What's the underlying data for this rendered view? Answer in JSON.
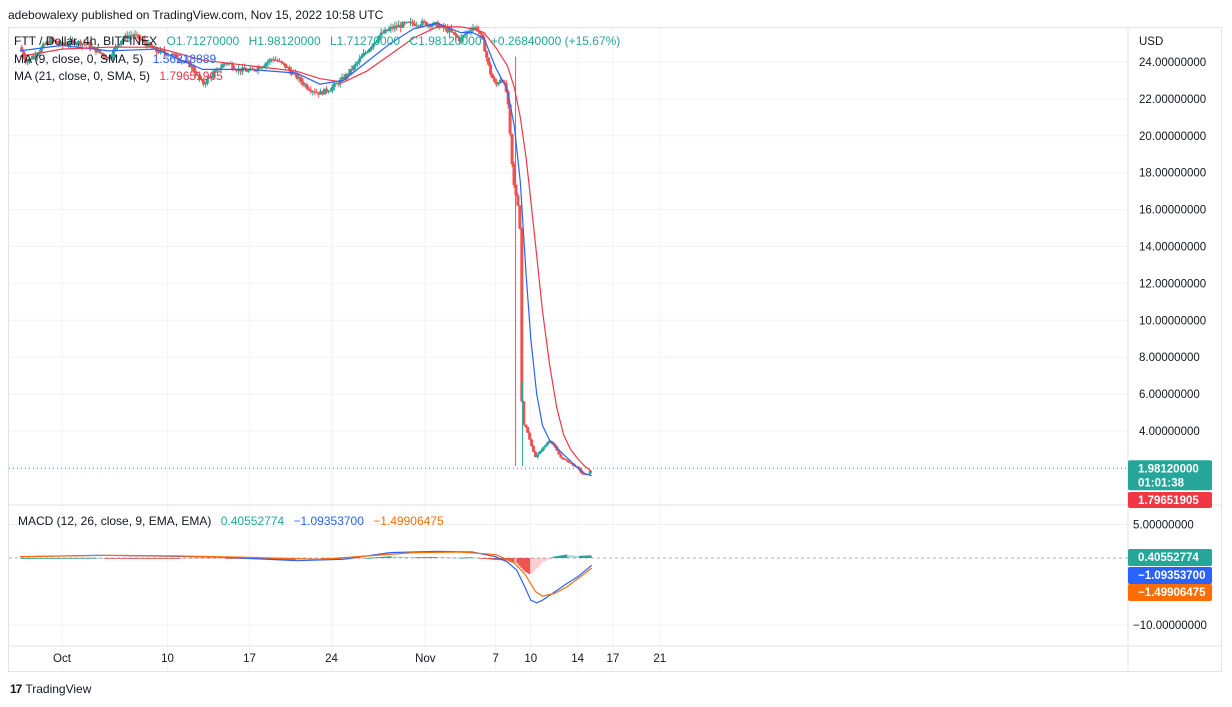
{
  "header": {
    "published": "adebowalexy published on TradingView.com, Nov 15, 2022 10:58 UTC"
  },
  "legend": {
    "symbol": "FTT / Dollar, 4h, BITFINEX",
    "o": "O1.71270000",
    "h": "H1.98120000",
    "l": "L1.71270000",
    "c": "C1.98120000",
    "chg": "+0.26840000 (+15.67%)",
    "ma1_label": "MA (9, close, 0, SMA, 5)",
    "ma1_value": "1.56218889",
    "ma2_label": "MA (21, close, 0, SMA, 5)",
    "ma2_value": "1.79651905",
    "macd_label": "MACD (12, 26, close, 9, EMA, EMA)",
    "macd_v1": "0.40552774",
    "macd_v2": "−1.09353700",
    "macd_v3": "−1.49906475"
  },
  "footer": {
    "brand": "TradingView"
  },
  "colors": {
    "up": "#26a69a",
    "down": "#ef5350",
    "ma_fast": "#2962ff",
    "ma_slow": "#f23645",
    "macd_line": "#2962ff",
    "signal_line": "#ff6d00",
    "hist_pos": "#26a69a",
    "hist_neg": "#ef5350",
    "hist_pos_light": "#b2dfdb",
    "hist_neg_light": "#ffcdd2"
  },
  "chart_data": [
    {
      "type": "candlestick",
      "title": "FTT / Dollar, 4h, BITFINEX",
      "currency": "USD",
      "ylim": [
        0.6,
        27.2
      ],
      "y_ticks": [
        "24.00000000",
        "22.00000000",
        "20.00000000",
        "18.00000000",
        "16.00000000",
        "14.00000000",
        "12.00000000",
        "10.00000000",
        "8.00000000",
        "6.00000000",
        "4.00000000"
      ],
      "y_tick_values": [
        24,
        22,
        20,
        18,
        16,
        14,
        12,
        10,
        8,
        6,
        4
      ],
      "x_ticks": [
        "Oct",
        "10",
        "17",
        "24",
        "Nov",
        "7",
        "10",
        "14",
        "17",
        "21"
      ],
      "x_tick_days": [
        0,
        9,
        16,
        23,
        31,
        37,
        40,
        44,
        47,
        51
      ],
      "last_price": "1.98120000",
      "countdown": "01:01:38",
      "ma_slow_last": "1.79651905",
      "anchors": [
        [
          -3.6,
          24.8
        ],
        [
          -3,
          24.0
        ],
        [
          -2,
          24.6
        ],
        [
          -1,
          25.2
        ],
        [
          0,
          24.9
        ],
        [
          1,
          25.1
        ],
        [
          2,
          25.0
        ],
        [
          3,
          24.6
        ],
        [
          4,
          24.2
        ],
        [
          5,
          25.2
        ],
        [
          6,
          25.5
        ],
        [
          7,
          25.1
        ],
        [
          8,
          24.6
        ],
        [
          9,
          24.5
        ],
        [
          10,
          24.2
        ],
        [
          11,
          23.8
        ],
        [
          12,
          22.8
        ],
        [
          13,
          23.4
        ],
        [
          14,
          24.0
        ],
        [
          15,
          23.6
        ],
        [
          16,
          23.5
        ],
        [
          17,
          23.8
        ],
        [
          18,
          24.2
        ],
        [
          19,
          23.8
        ],
        [
          20,
          23.2
        ],
        [
          21,
          22.6
        ],
        [
          22,
          22.3
        ],
        [
          23,
          22.6
        ],
        [
          24,
          23.1
        ],
        [
          25,
          23.8
        ],
        [
          26,
          24.6
        ],
        [
          27,
          25.4
        ],
        [
          28,
          25.8
        ],
        [
          29,
          26.0
        ],
        [
          30,
          26.1
        ],
        [
          31,
          26.1
        ],
        [
          32,
          26.0
        ],
        [
          33,
          25.7
        ],
        [
          34,
          25.2
        ],
        [
          34.5,
          25.6
        ],
        [
          35,
          25.9
        ],
        [
          35.5,
          25.8
        ],
        [
          36,
          24.9
        ],
        [
          36.5,
          23.5
        ],
        [
          37,
          22.7
        ],
        [
          37.5,
          23.2
        ],
        [
          38,
          22.2
        ],
        [
          38.5,
          17.5
        ],
        [
          39,
          16.0
        ],
        [
          39.1,
          14.5
        ],
        [
          39.25,
          4.5
        ],
        [
          39.6,
          4.2
        ],
        [
          40,
          3.3
        ],
        [
          40.4,
          2.6
        ],
        [
          40.8,
          2.9
        ],
        [
          41.2,
          3.2
        ],
        [
          41.6,
          3.5
        ],
        [
          42,
          3.2
        ],
        [
          42.5,
          2.6
        ],
        [
          43,
          2.4
        ],
        [
          43.5,
          2.2
        ],
        [
          44,
          2.0
        ],
        [
          44.5,
          1.6
        ],
        [
          45,
          1.72
        ],
        [
          45.2,
          1.98
        ]
      ],
      "ma_fast": [
        [
          -3.6,
          24.6
        ],
        [
          0,
          24.9
        ],
        [
          4,
          24.6
        ],
        [
          8,
          24.7
        ],
        [
          12,
          23.6
        ],
        [
          16,
          23.6
        ],
        [
          20,
          23.4
        ],
        [
          22,
          22.8
        ],
        [
          24,
          23.0
        ],
        [
          26,
          24.0
        ],
        [
          28,
          25.0
        ],
        [
          30,
          25.8
        ],
        [
          32,
          26.1
        ],
        [
          34,
          25.6
        ],
        [
          35,
          25.6
        ],
        [
          36,
          25.3
        ],
        [
          37,
          23.7
        ],
        [
          38,
          22.5
        ],
        [
          38.6,
          20.5
        ],
        [
          39.1,
          17.5
        ],
        [
          39.6,
          12.5
        ],
        [
          40,
          9.0
        ],
        [
          40.5,
          6.0
        ],
        [
          41,
          4.3
        ],
        [
          41.6,
          3.5
        ],
        [
          42.2,
          3.1
        ],
        [
          43,
          2.6
        ],
        [
          44,
          2.0
        ],
        [
          44.6,
          1.7
        ],
        [
          45.2,
          1.56
        ]
      ],
      "ma_slow": [
        [
          -3.6,
          24.3
        ],
        [
          0,
          24.7
        ],
        [
          4,
          24.8
        ],
        [
          8,
          24.8
        ],
        [
          12,
          24.1
        ],
        [
          16,
          23.8
        ],
        [
          20,
          23.5
        ],
        [
          22,
          23.1
        ],
        [
          24,
          22.9
        ],
        [
          26,
          23.5
        ],
        [
          28,
          24.4
        ],
        [
          30,
          25.3
        ],
        [
          32,
          25.9
        ],
        [
          34,
          25.9
        ],
        [
          35,
          25.8
        ],
        [
          36,
          25.6
        ],
        [
          37,
          24.8
        ],
        [
          38,
          23.8
        ],
        [
          38.6,
          22.6
        ],
        [
          39.1,
          21.0
        ],
        [
          39.6,
          18.8
        ],
        [
          40,
          16.5
        ],
        [
          40.5,
          13.5
        ],
        [
          41,
          10.5
        ],
        [
          41.6,
          7.6
        ],
        [
          42.2,
          5.3
        ],
        [
          42.8,
          3.8
        ],
        [
          43.4,
          3.0
        ],
        [
          44,
          2.5
        ],
        [
          44.6,
          2.1
        ],
        [
          45.2,
          1.8
        ]
      ]
    },
    {
      "type": "macd",
      "title": "MACD (12, 26, close, 9, EMA, EMA)",
      "ylim": [
        -12.5,
        7.5
      ],
      "y_ticks": [
        "5.00000000",
        "−10.00000000"
      ],
      "y_tick_values": [
        5,
        -10
      ],
      "values": {
        "histogram": "0.40552774",
        "macd": "−1.09353700",
        "signal": "−1.49906475"
      },
      "macd_line": [
        [
          -3.6,
          0.2
        ],
        [
          3,
          0.4
        ],
        [
          8,
          0.3
        ],
        [
          14,
          0.1
        ],
        [
          20,
          -0.4
        ],
        [
          24,
          -0.2
        ],
        [
          28,
          0.8
        ],
        [
          32,
          1.0
        ],
        [
          35,
          0.9
        ],
        [
          37,
          0.2
        ],
        [
          38,
          -0.6
        ],
        [
          38.8,
          -1.8
        ],
        [
          39.4,
          -4.0
        ],
        [
          40,
          -6.3
        ],
        [
          40.5,
          -6.7
        ],
        [
          41,
          -6.3
        ],
        [
          42,
          -5.1
        ],
        [
          43,
          -3.9
        ],
        [
          44,
          -2.8
        ],
        [
          45.2,
          -1.09
        ]
      ],
      "signal_line": [
        [
          -3.6,
          0.2
        ],
        [
          4,
          0.4
        ],
        [
          10,
          0.3
        ],
        [
          16,
          0.1
        ],
        [
          22,
          -0.2
        ],
        [
          26,
          0.3
        ],
        [
          30,
          0.8
        ],
        [
          34,
          0.9
        ],
        [
          37,
          0.5
        ],
        [
          38.5,
          -0.6
        ],
        [
          39.5,
          -2.4
        ],
        [
          40.4,
          -5.0
        ],
        [
          41,
          -5.7
        ],
        [
          42,
          -5.3
        ],
        [
          43,
          -4.4
        ],
        [
          44,
          -3.1
        ],
        [
          45.2,
          -1.5
        ]
      ]
    }
  ]
}
